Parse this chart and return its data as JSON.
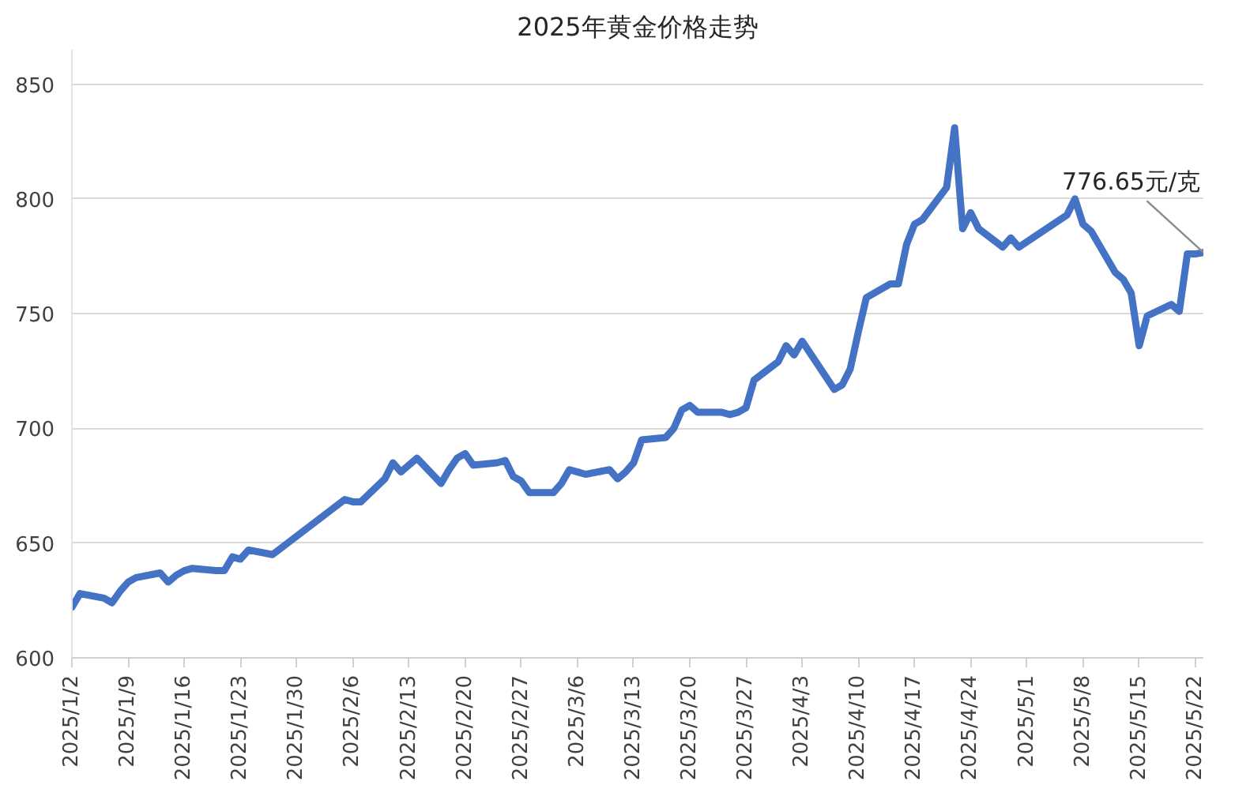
{
  "chart_data": {
    "type": "line",
    "title": "2025年黄金价格走势",
    "x": [
      "2025-01-02",
      "2025-01-03",
      "2025-01-06",
      "2025-01-07",
      "2025-01-08",
      "2025-01-09",
      "2025-01-10",
      "2025-01-13",
      "2025-01-14",
      "2025-01-15",
      "2025-01-16",
      "2025-01-17",
      "2025-01-20",
      "2025-01-21",
      "2025-01-22",
      "2025-01-23",
      "2025-01-24",
      "2025-01-27",
      "2025-02-05",
      "2025-02-06",
      "2025-02-07",
      "2025-02-10",
      "2025-02-11",
      "2025-02-12",
      "2025-02-13",
      "2025-02-14",
      "2025-02-17",
      "2025-02-18",
      "2025-02-19",
      "2025-02-20",
      "2025-02-21",
      "2025-02-24",
      "2025-02-25",
      "2025-02-26",
      "2025-02-27",
      "2025-02-28",
      "2025-03-03",
      "2025-03-04",
      "2025-03-05",
      "2025-03-06",
      "2025-03-07",
      "2025-03-10",
      "2025-03-11",
      "2025-03-12",
      "2025-03-13",
      "2025-03-14",
      "2025-03-17",
      "2025-03-18",
      "2025-03-19",
      "2025-03-20",
      "2025-03-21",
      "2025-03-24",
      "2025-03-25",
      "2025-03-26",
      "2025-03-27",
      "2025-03-28",
      "2025-03-31",
      "2025-04-01",
      "2025-04-02",
      "2025-04-03",
      "2025-04-07",
      "2025-04-08",
      "2025-04-09",
      "2025-04-10",
      "2025-04-11",
      "2025-04-14",
      "2025-04-15",
      "2025-04-16",
      "2025-04-17",
      "2025-04-18",
      "2025-04-21",
      "2025-04-22",
      "2025-04-23",
      "2025-04-24",
      "2025-04-25",
      "2025-04-28",
      "2025-04-29",
      "2025-04-30",
      "2025-05-06",
      "2025-05-07",
      "2025-05-08",
      "2025-05-09",
      "2025-05-12",
      "2025-05-13",
      "2025-05-14",
      "2025-05-15",
      "2025-05-16",
      "2025-05-19",
      "2025-05-20",
      "2025-05-21",
      "2025-05-22",
      "2025-05-23"
    ],
    "series": [
      {
        "color": "#4472c4",
        "values": [
          622,
          628,
          626,
          624,
          629,
          633,
          635,
          637,
          633,
          636,
          638,
          639,
          638,
          638,
          644,
          643,
          647,
          645,
          669,
          668,
          668,
          678,
          685,
          681,
          684,
          687,
          676,
          682,
          687,
          689,
          684,
          685,
          686,
          679,
          677,
          672,
          672,
          676,
          682,
          681,
          680,
          682,
          678,
          681,
          685,
          695,
          696,
          700,
          708,
          710,
          707,
          707,
          706,
          707,
          709,
          721,
          729,
          736,
          732,
          738,
          717,
          719,
          726,
          742,
          757,
          763,
          763,
          780,
          789,
          791,
          805,
          831,
          787,
          794,
          787,
          779,
          783,
          779,
          793,
          800,
          789,
          786,
          768,
          765,
          759,
          736,
          749,
          754,
          751,
          776,
          776,
          776.65
        ]
      }
    ],
    "xlim": [
      "2025-01-02",
      "2025-05-23"
    ],
    "ylim": [
      600,
      865
    ],
    "xticks": [
      {
        "value": "2025-01-02",
        "label": "2025/1/2"
      },
      {
        "value": "2025-01-09",
        "label": "2025/1/9"
      },
      {
        "value": "2025-01-16",
        "label": "2025/1/16"
      },
      {
        "value": "2025-01-23",
        "label": "2025/1/23"
      },
      {
        "value": "2025-01-30",
        "label": "2025/1/30"
      },
      {
        "value": "2025-02-06",
        "label": "2025/2/6"
      },
      {
        "value": "2025-02-13",
        "label": "2025/2/13"
      },
      {
        "value": "2025-02-20",
        "label": "2025/2/20"
      },
      {
        "value": "2025-02-27",
        "label": "2025/2/27"
      },
      {
        "value": "2025-03-06",
        "label": "2025/3/6"
      },
      {
        "value": "2025-03-13",
        "label": "2025/3/13"
      },
      {
        "value": "2025-03-20",
        "label": "2025/3/20"
      },
      {
        "value": "2025-03-27",
        "label": "2025/3/27"
      },
      {
        "value": "2025-04-03",
        "label": "2025/4/3"
      },
      {
        "value": "2025-04-10",
        "label": "2025/4/10"
      },
      {
        "value": "2025-04-17",
        "label": "2025/4/17"
      },
      {
        "value": "2025-04-24",
        "label": "2025/4/24"
      },
      {
        "value": "2025-05-01",
        "label": "2025/5/1"
      },
      {
        "value": "2025-05-08",
        "label": "2025/5/8"
      },
      {
        "value": "2025-05-15",
        "label": "2025/5/15"
      },
      {
        "value": "2025-05-22",
        "label": "2025/5/22"
      }
    ],
    "yticks": [
      600,
      650,
      700,
      750,
      800,
      850
    ],
    "grid": "y",
    "line_style": "solid",
    "annotations": [
      {
        "text": "776.65元/克",
        "x": "2025-05-23",
        "y": 776.65
      }
    ]
  }
}
